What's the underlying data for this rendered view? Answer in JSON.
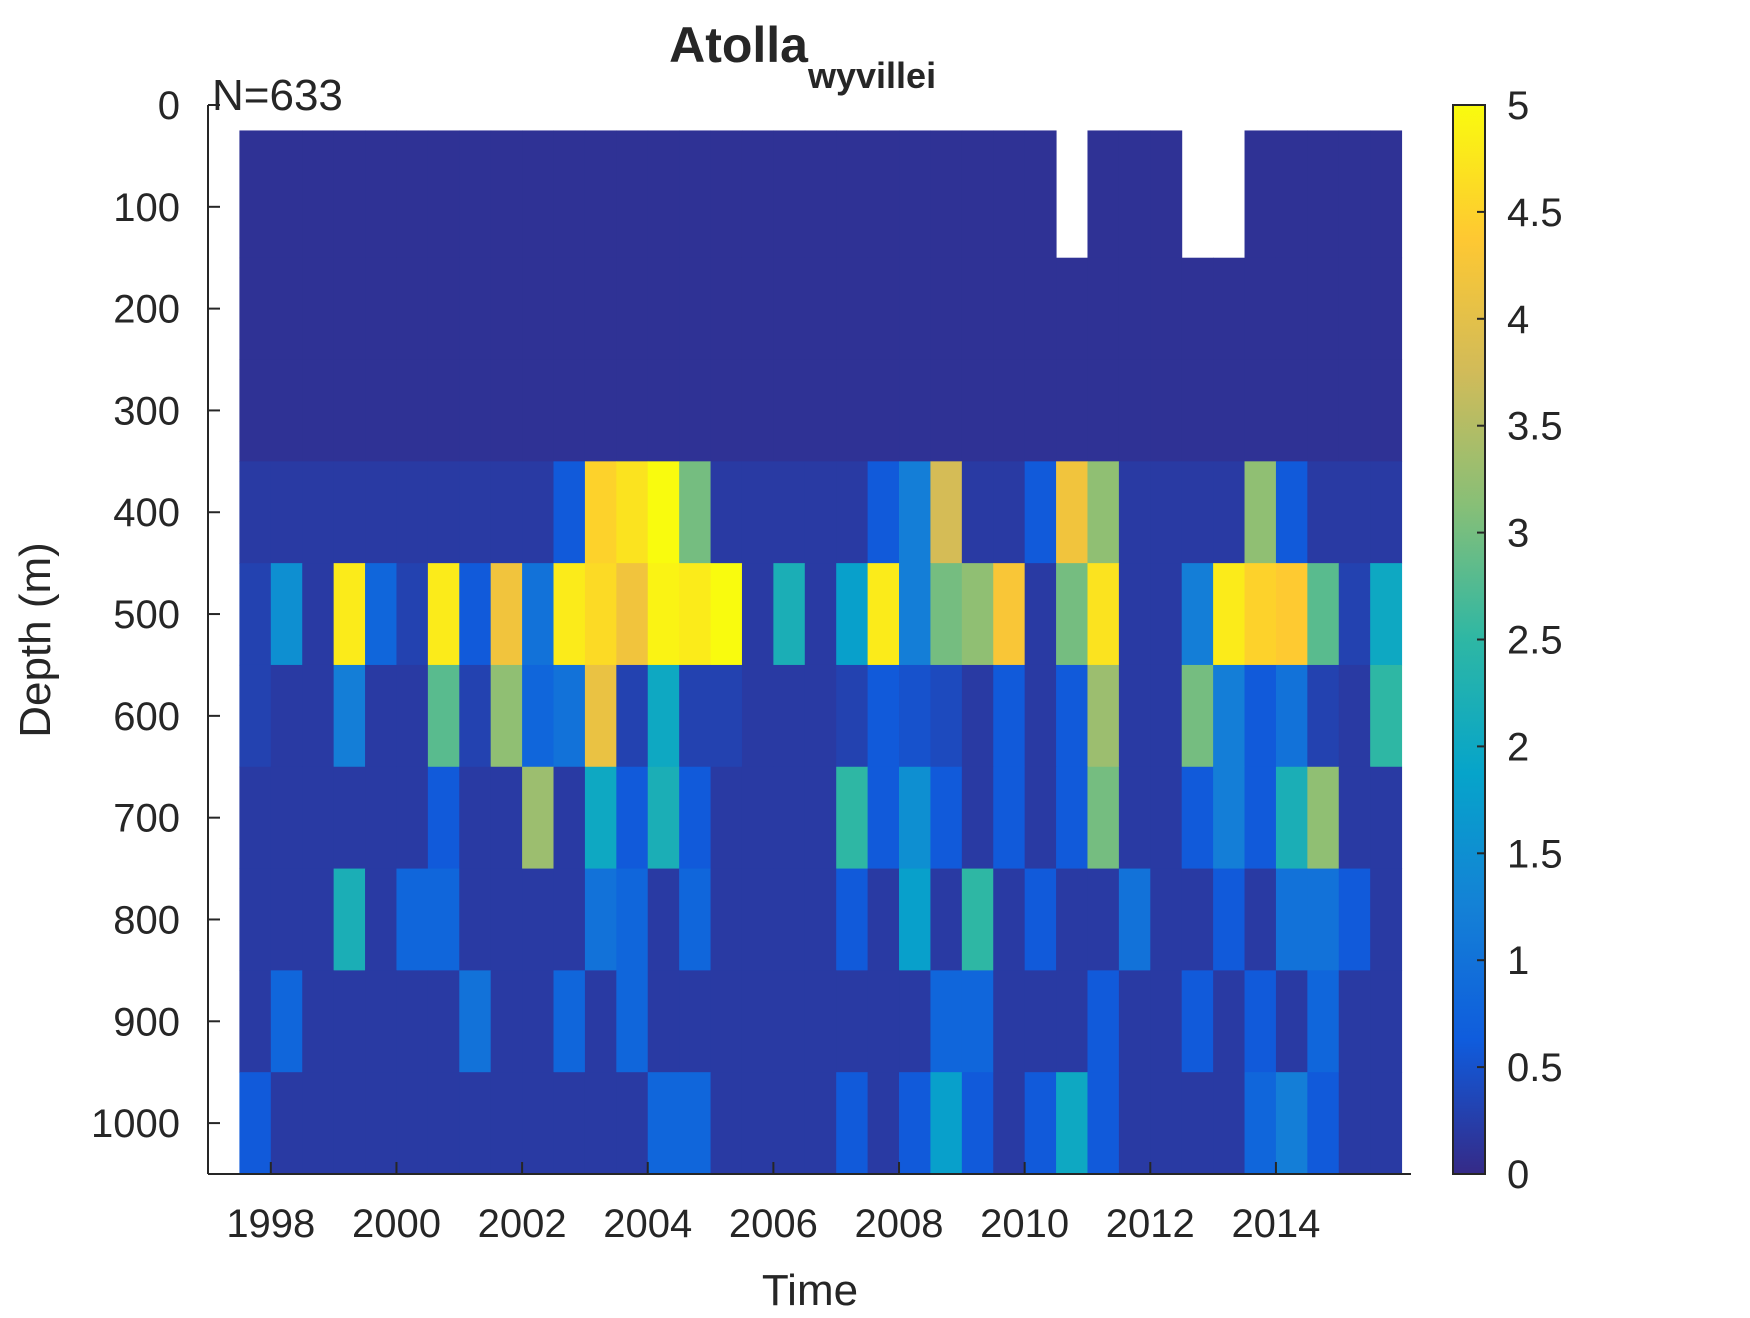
{
  "chart_data": {
    "type": "heatmap",
    "title": "Atolla",
    "title_subscript": "wyvillei",
    "annotation": "N=633",
    "x_label": "Time",
    "y_label": "Depth (m)",
    "xlim": [
      1997,
      2016.15
    ],
    "xticks": [
      1998,
      2000,
      2002,
      2004,
      2006,
      2008,
      2010,
      2012,
      2014
    ],
    "ylim": [
      0,
      1050
    ],
    "y_reversed": true,
    "yticks": [
      0,
      100,
      200,
      300,
      400,
      500,
      600,
      700,
      800,
      900,
      1000
    ],
    "xbins": [
      1997,
      1997.5,
      1998,
      1998.5,
      1999,
      1999.5,
      2000,
      2000.5,
      2001,
      2001.5,
      2002,
      2002.5,
      2003,
      2003.5,
      2004,
      2004.5,
      2005,
      2005.5,
      2006,
      2006.5,
      2007,
      2007.5,
      2008,
      2008.5,
      2009,
      2009.5,
      2010,
      2010.5,
      2011,
      2011.5,
      2012,
      2012.5,
      2013,
      2013.5,
      2014,
      2014.5,
      2015,
      2015.5,
      2016
    ],
    "ybins": [
      25,
      150,
      250,
      350,
      450,
      550,
      650,
      750,
      850,
      950,
      1050
    ],
    "values": [
      [
        null,
        0.1,
        0.1,
        0.1,
        0.1,
        0.1,
        0.1,
        0.1,
        0.1,
        0.1,
        0.1,
        0.1,
        0.1,
        0.1,
        0.1,
        0.1,
        0.1,
        0.1,
        0.1,
        0.1,
        0.1,
        0.1,
        0.1,
        0.1,
        0.1,
        0.1,
        0.1,
        null,
        0.1,
        0.1,
        0.1,
        null,
        null,
        0.1,
        0.1,
        0.1,
        0.1,
        0.1
      ],
      [
        null,
        0.1,
        0.1,
        0.1,
        0.1,
        0.1,
        0.1,
        0.1,
        0.1,
        0.1,
        0.1,
        0.1,
        0.1,
        0.1,
        0.1,
        0.1,
        0.1,
        0.1,
        0.1,
        0.1,
        0.1,
        0.1,
        0.1,
        0.1,
        0.1,
        0.1,
        0.1,
        0.1,
        0.1,
        0.1,
        0.1,
        0.1,
        0.1,
        0.1,
        0.1,
        0.1,
        0.1,
        0.1
      ],
      [
        null,
        0.1,
        0.1,
        0.1,
        0.1,
        0.1,
        0.1,
        0.1,
        0.1,
        0.1,
        0.1,
        0.1,
        0.1,
        0.1,
        0.1,
        0.1,
        0.1,
        0.1,
        0.1,
        0.1,
        0.1,
        0.1,
        0.1,
        0.1,
        0.1,
        0.1,
        0.1,
        0.1,
        0.1,
        0.1,
        0.1,
        0.1,
        0.1,
        0.1,
        0.1,
        0.1,
        0.1,
        0.1
      ],
      [
        null,
        0.2,
        0.2,
        0.2,
        0.2,
        0.2,
        0.2,
        0.2,
        0.2,
        0.2,
        0.2,
        0.6,
        4.5,
        4.7,
        5,
        3,
        0.2,
        0.2,
        0.2,
        0.2,
        0.2,
        0.6,
        1.2,
        3.8,
        0.2,
        0.2,
        0.6,
        4.2,
        3.2,
        0.2,
        0.2,
        0.2,
        0.2,
        3.2,
        0.6,
        0.2,
        0.2,
        0.2
      ],
      [
        null,
        0.3,
        1.5,
        0.2,
        4.8,
        0.8,
        0.3,
        4.8,
        0.6,
        4.2,
        1.0,
        4.8,
        4.6,
        4.2,
        4.9,
        4.8,
        5,
        0.2,
        2.2,
        0.2,
        1.8,
        4.8,
        1.2,
        3.0,
        3.2,
        4.3,
        0.2,
        3.0,
        4.7,
        0.2,
        0.2,
        1.2,
        4.8,
        4.5,
        4.4,
        2.8,
        0.3,
        2.0
      ],
      [
        null,
        0.3,
        0.2,
        0.2,
        1.2,
        0.2,
        0.2,
        2.8,
        0.3,
        3.2,
        0.8,
        1.0,
        4.1,
        0.3,
        2.0,
        0.3,
        0.3,
        0.2,
        0.2,
        0.2,
        0.3,
        0.6,
        0.5,
        0.4,
        0.2,
        0.6,
        0.2,
        0.6,
        3.3,
        0.2,
        0.2,
        3.0,
        1.2,
        0.6,
        1.0,
        0.3,
        0.2,
        2.5
      ],
      [
        null,
        0.2,
        0.2,
        0.2,
        0.2,
        0.2,
        0.2,
        0.6,
        0.2,
        0.2,
        3.3,
        0.2,
        2.0,
        0.6,
        2.2,
        0.6,
        0.2,
        0.2,
        0.2,
        0.2,
        2.5,
        0.6,
        1.5,
        0.6,
        0.2,
        0.6,
        0.2,
        0.6,
        3.0,
        0.2,
        0.2,
        0.6,
        1.2,
        0.6,
        2.2,
        3.2,
        0.2,
        0.2
      ],
      [
        null,
        0.2,
        0.2,
        0.2,
        2.2,
        0.2,
        0.8,
        0.8,
        0.2,
        0.2,
        0.2,
        0.2,
        1.0,
        0.8,
        0.2,
        0.8,
        0.2,
        0.2,
        0.2,
        0.2,
        0.6,
        0.2,
        1.8,
        0.2,
        2.5,
        0.2,
        0.6,
        0.2,
        0.2,
        1.0,
        0.2,
        0.2,
        0.6,
        0.2,
        1.0,
        1.0,
        0.6,
        0.2
      ],
      [
        null,
        0.2,
        0.8,
        0.2,
        0.2,
        0.2,
        0.2,
        0.2,
        1.0,
        0.2,
        0.2,
        0.8,
        0.2,
        0.8,
        0.2,
        0.2,
        0.2,
        0.2,
        0.2,
        0.2,
        0.2,
        0.2,
        0.2,
        0.8,
        0.8,
        0.2,
        0.2,
        0.2,
        0.6,
        0.2,
        0.2,
        0.6,
        0.2,
        0.6,
        0.2,
        0.8,
        0.2,
        0.2
      ],
      [
        null,
        0.6,
        0.2,
        0.2,
        0.2,
        0.2,
        0.2,
        0.2,
        0.2,
        0.2,
        0.2,
        0.2,
        0.2,
        0.2,
        0.8,
        0.8,
        0.2,
        0.2,
        0.2,
        0.2,
        0.6,
        0.2,
        0.6,
        1.8,
        0.6,
        0.2,
        0.6,
        2.0,
        0.6,
        0.2,
        0.2,
        0.2,
        0.2,
        0.8,
        1.2,
        0.6,
        0.2,
        0.2
      ]
    ],
    "colormap": [
      "#352a87",
      "#0f5cdd",
      "#1481d6",
      "#06a4ca",
      "#2eb7a4",
      "#87bf77",
      "#d1bb59",
      "#fec832",
      "#f9fb0e"
    ],
    "clim": [
      0,
      5
    ],
    "colorbar_ticks": [
      0,
      0.5,
      1,
      1.5,
      2,
      2.5,
      3,
      3.5,
      4,
      4.5,
      5
    ]
  }
}
